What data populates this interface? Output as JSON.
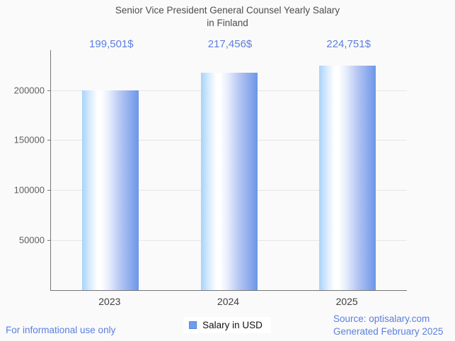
{
  "title": {
    "line1": "Senior Vice President General Counsel Yearly Salary",
    "line2": "in Finland"
  },
  "chart_data": {
    "type": "bar",
    "title": "Senior Vice President General Counsel Yearly Salary in Finland",
    "categories": [
      "2023",
      "2024",
      "2025"
    ],
    "series": [
      {
        "name": "Salary in USD",
        "values": [
          199501,
          217456,
          224751
        ]
      }
    ],
    "value_labels": [
      "199,501$",
      "217,456$",
      "224,751$"
    ],
    "xlabel": "",
    "ylabel": "",
    "ylim": [
      0,
      240000
    ],
    "yticks": [
      50000,
      100000,
      150000,
      200000
    ],
    "ytick_labels": [
      "50000",
      "100000",
      "150000",
      "200000"
    ],
    "grid": true,
    "legend_position": "bottom"
  },
  "legend": {
    "label": "Salary in USD"
  },
  "footer": {
    "disclaimer": "For informational use only",
    "source": "Source: optisalary.com",
    "generated": "Generated February 2025"
  },
  "colors": {
    "background": "#fafafa",
    "accent_text": "#5b7fe0",
    "title_text": "#4d4d4d",
    "axis_text": "#5f5f5f",
    "axis_line": "#757575",
    "gridline": "#e6e6e6",
    "legend_swatch": "#6d9eeb",
    "bar_left": "#a7d3fa",
    "bar_mid": "#ffffff",
    "bar_right": "#6c96e8"
  }
}
